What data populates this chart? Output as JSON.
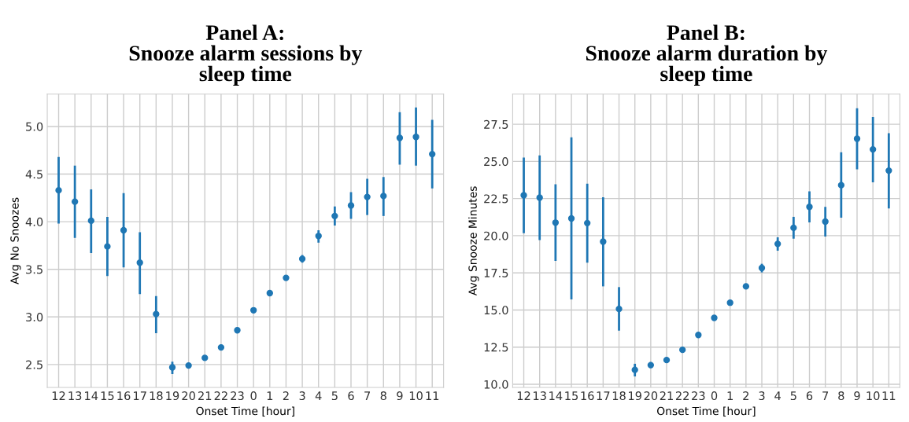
{
  "chart_data": [
    {
      "type": "scatter",
      "title": "Panel A:\nSnooze alarm sessions by\nsleep time",
      "xlabel": "Onset Time [hour]",
      "ylabel": "Avg No Snoozes",
      "categories": [
        "12",
        "13",
        "14",
        "15",
        "16",
        "17",
        "18",
        "19",
        "20",
        "21",
        "22",
        "23",
        "0",
        "1",
        "2",
        "3",
        "4",
        "5",
        "6",
        "7",
        "8",
        "9",
        "10",
        "11"
      ],
      "series": [
        {
          "color": "#1f77b4",
          "values": [
            4.33,
            4.21,
            4.01,
            3.74,
            3.91,
            3.57,
            3.03,
            2.47,
            2.49,
            2.57,
            2.68,
            2.86,
            3.07,
            3.25,
            3.41,
            3.61,
            3.85,
            4.06,
            4.17,
            4.26,
            4.27,
            4.88,
            4.89,
            4.71
          ],
          "errors": [
            [
              3.98,
              4.68
            ],
            [
              3.83,
              4.59
            ],
            [
              3.67,
              4.34
            ],
            [
              3.43,
              4.05
            ],
            [
              3.52,
              4.3
            ],
            [
              3.24,
              3.89
            ],
            [
              2.83,
              3.22
            ],
            [
              2.4,
              2.53
            ],
            null,
            null,
            null,
            null,
            null,
            null,
            null,
            [
              3.57,
              3.65
            ],
            [
              3.78,
              3.91
            ],
            [
              3.96,
              4.16
            ],
            [
              4.03,
              4.31
            ],
            [
              4.07,
              4.45
            ],
            [
              4.06,
              4.47
            ],
            [
              4.6,
              5.15
            ],
            [
              4.59,
              5.2
            ],
            [
              4.35,
              5.07
            ]
          ]
        }
      ],
      "ylim": [
        2.26,
        5.34
      ],
      "yticks": [
        {
          "value": 2.5,
          "label": "2.5"
        },
        {
          "value": 3,
          "label": "3.0"
        },
        {
          "value": 3.5,
          "label": "3.5"
        },
        {
          "value": 4,
          "label": "4.0"
        },
        {
          "value": 4.5,
          "label": "4.5"
        },
        {
          "value": 5,
          "label": "5.0"
        }
      ],
      "grid": true,
      "marker": "circle"
    },
    {
      "type": "scatter",
      "title": "Panel B:\nSnooze alarm duration by\nsleep time",
      "xlabel": "Onset Time [hour]",
      "ylabel": "Avg Snooze Minutes",
      "categories": [
        "12",
        "13",
        "14",
        "15",
        "16",
        "17",
        "18",
        "19",
        "20",
        "21",
        "22",
        "23",
        "0",
        "1",
        "2",
        "3",
        "4",
        "5",
        "6",
        "7",
        "8",
        "9",
        "10",
        "11"
      ],
      "series": [
        {
          "color": "#1f77b4",
          "values": [
            22.72,
            22.56,
            20.88,
            21.16,
            20.85,
            19.6,
            15.07,
            10.97,
            11.29,
            11.63,
            12.32,
            13.32,
            14.47,
            15.49,
            16.59,
            17.83,
            19.45,
            20.53,
            21.94,
            20.95,
            23.4,
            26.53,
            25.81,
            24.38
          ],
          "errors": [
            [
              20.17,
              25.26
            ],
            [
              19.7,
              25.4
            ],
            [
              18.3,
              23.46
            ],
            [
              15.71,
              26.62
            ],
            [
              18.18,
              23.5
            ],
            [
              16.59,
              22.59
            ],
            [
              13.61,
              16.54
            ],
            [
              10.53,
              11.38
            ],
            [
              11.1,
              11.49
            ],
            null,
            null,
            null,
            null,
            null,
            [
              16.43,
              16.75
            ],
            [
              17.53,
              18.11
            ],
            [
              18.99,
              19.89
            ],
            [
              19.8,
              21.27
            ],
            [
              20.9,
              22.98
            ],
            [
              19.94,
              21.94
            ],
            [
              21.21,
              25.61
            ],
            [
              24.46,
              28.58
            ],
            [
              23.59,
              27.98
            ],
            [
              21.83,
              26.9
            ]
          ]
        }
      ],
      "ylim": [
        9.79,
        29.53
      ],
      "yticks": [
        {
          "value": 10,
          "label": "10.0"
        },
        {
          "value": 12.5,
          "label": "12.5"
        },
        {
          "value": 15,
          "label": "15.0"
        },
        {
          "value": 17.5,
          "label": "17.5"
        },
        {
          "value": 20,
          "label": "20.0"
        },
        {
          "value": 22.5,
          "label": "22.5"
        },
        {
          "value": 25,
          "label": "25.0"
        },
        {
          "value": 27.5,
          "label": "27.5"
        }
      ],
      "grid": true,
      "marker": "circle"
    }
  ]
}
